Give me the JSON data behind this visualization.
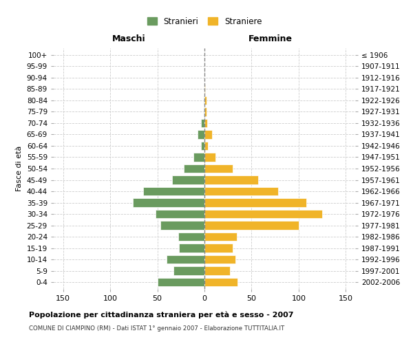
{
  "age_groups": [
    "100+",
    "95-99",
    "90-94",
    "85-89",
    "80-84",
    "75-79",
    "70-74",
    "65-69",
    "60-64",
    "55-59",
    "50-54",
    "45-49",
    "40-44",
    "35-39",
    "30-34",
    "25-29",
    "20-24",
    "15-19",
    "10-14",
    "5-9",
    "0-4"
  ],
  "birth_years": [
    "≤ 1906",
    "1907-1911",
    "1912-1916",
    "1917-1921",
    "1922-1926",
    "1927-1931",
    "1932-1936",
    "1937-1941",
    "1942-1946",
    "1947-1951",
    "1952-1956",
    "1957-1961",
    "1962-1966",
    "1967-1971",
    "1972-1976",
    "1977-1981",
    "1982-1986",
    "1987-1991",
    "1992-1996",
    "1997-2001",
    "2002-2006"
  ],
  "males": [
    0,
    0,
    0,
    0,
    1,
    1,
    4,
    7,
    4,
    12,
    22,
    34,
    65,
    76,
    52,
    47,
    28,
    27,
    40,
    33,
    50
  ],
  "females": [
    0,
    0,
    0,
    1,
    2,
    2,
    3,
    8,
    4,
    12,
    30,
    57,
    78,
    108,
    125,
    100,
    34,
    30,
    33,
    27,
    35
  ],
  "male_color": "#6a9b5f",
  "female_color": "#f0b429",
  "background_color": "#ffffff",
  "grid_color": "#cccccc",
  "center_line_color": "#888888",
  "title": "Popolazione per cittadinanza straniera per età e sesso - 2007",
  "subtitle": "COMUNE DI CIAMPINO (RM) - Dati ISTAT 1° gennaio 2007 - Elaborazione TUTTITALIA.IT",
  "xlabel_left": "Maschi",
  "xlabel_right": "Femmine",
  "ylabel_left": "Fasce di età",
  "legend_male": "Stranieri",
  "legend_female": "Straniere",
  "xlim": 160,
  "xtick_labels": [
    "150",
    "100",
    "50",
    "0",
    "50",
    "100",
    "150"
  ]
}
